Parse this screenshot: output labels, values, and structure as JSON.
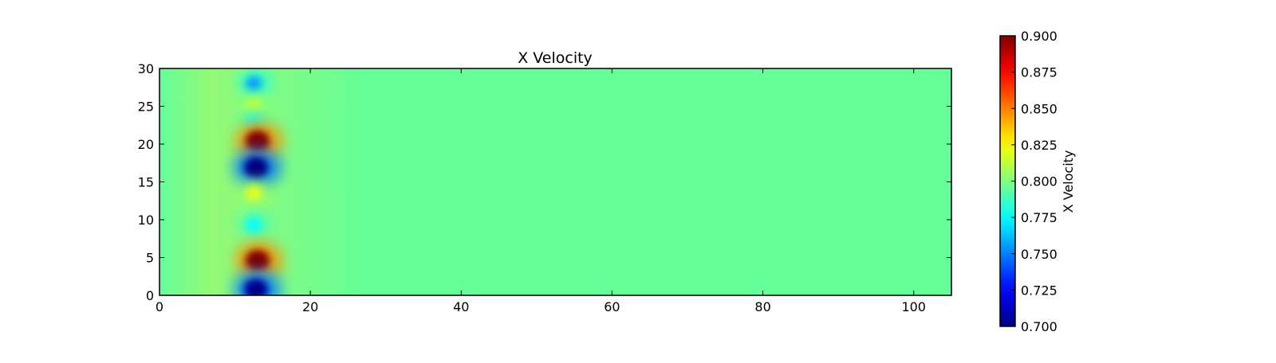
{
  "chart_data": {
    "type": "heatmap",
    "title": "X Velocity",
    "xlabel": "",
    "ylabel": "",
    "xlim": [
      0,
      105
    ],
    "ylim": [
      0,
      30
    ],
    "x_ticks": [
      0,
      20,
      40,
      60,
      80,
      100
    ],
    "y_ticks": [
      0,
      5,
      10,
      15,
      20,
      25,
      30
    ],
    "colormap": "jet",
    "background_value": 0.795,
    "colorbar": {
      "label": "X Velocity",
      "range": [
        0.7,
        0.9
      ],
      "ticks": [
        "0.700",
        "0.725",
        "0.750",
        "0.775",
        "0.800",
        "0.825",
        "0.850",
        "0.875",
        "0.900"
      ]
    },
    "features": [
      {
        "x": 12.5,
        "y": 28.0,
        "value": 0.755
      },
      {
        "x": 12.5,
        "y": 25.0,
        "value": 0.815
      },
      {
        "x": 12.5,
        "y": 23.0,
        "value": 0.78
      },
      {
        "x": 13.0,
        "y": 20.4,
        "value": 0.9
      },
      {
        "x": 12.8,
        "y": 16.9,
        "value": 0.7
      },
      {
        "x": 12.5,
        "y": 13.5,
        "value": 0.82
      },
      {
        "x": 12.5,
        "y": 9.3,
        "value": 0.775
      },
      {
        "x": 13.0,
        "y": 4.6,
        "value": 0.9
      },
      {
        "x": 12.8,
        "y": 0.8,
        "value": 0.705
      }
    ]
  }
}
